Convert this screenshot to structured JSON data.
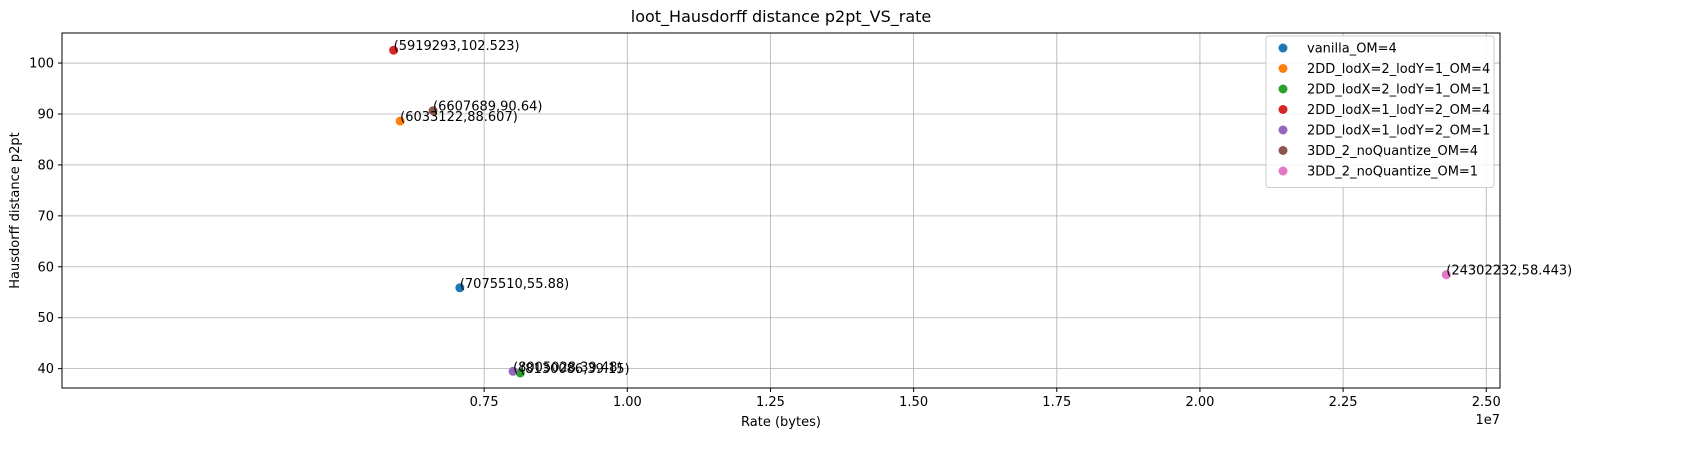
{
  "chart_data": {
    "type": "scatter",
    "title": "loot_Hausdorff distance p2pt_VS_rate",
    "xlabel": "Rate (bytes)",
    "ylabel": "Hausdorff distance p2pt",
    "x_offset_label": "1e7",
    "x_scale_factor": 10000000,
    "xlim": [
      128000,
      25240000
    ],
    "ylim": [
      36.2,
      105.9
    ],
    "xticks": [
      0.75,
      1.0,
      1.25,
      1.5,
      1.75,
      2.0,
      2.25,
      2.5
    ],
    "xtick_labels": [
      "0.75",
      "1.00",
      "1.25",
      "1.50",
      "1.75",
      "2.00",
      "2.25",
      "2.50"
    ],
    "yticks": [
      40,
      50,
      60,
      70,
      80,
      90,
      100
    ],
    "ytick_labels": [
      "40",
      "50",
      "60",
      "70",
      "80",
      "90",
      "100"
    ],
    "grid": true,
    "legend_position": "top-right",
    "series": [
      {
        "name": "vanilla_OM=4",
        "color": "#1f77b4",
        "points": [
          {
            "x": 7075510,
            "y": 55.88,
            "label": "(7075510,55.88)"
          }
        ]
      },
      {
        "name": "2DD_lodX=2_lodY=1_OM=4",
        "color": "#ff7f0e",
        "points": [
          {
            "x": 6033122,
            "y": 88.607,
            "label": "(6033122,88.607)"
          }
        ]
      },
      {
        "name": "2DD_lodX=2_lodY=1_OM=1",
        "color": "#2ca02c",
        "points": [
          {
            "x": 8130086,
            "y": 39.15,
            "label": "(8130086,39.15)"
          }
        ]
      },
      {
        "name": "2DD_lodX=1_lodY=2_OM=4",
        "color": "#d62728",
        "points": [
          {
            "x": 5919293,
            "y": 102.523,
            "label": "(5919293,102.523)"
          }
        ]
      },
      {
        "name": "2DD_lodX=1_lodY=2_OM=1",
        "color": "#9467bd",
        "points": [
          {
            "x": 8005028,
            "y": 39.48,
            "label": "(8005028,39.48)"
          }
        ]
      },
      {
        "name": "3DD_2_noQuantize_OM=4",
        "color": "#8c564b",
        "points": [
          {
            "x": 6607689,
            "y": 90.64,
            "label": "(6607689,90.64)"
          }
        ]
      },
      {
        "name": "3DD_2_noQuantize_OM=1",
        "color": "#e377c2",
        "points": [
          {
            "x": 24302232,
            "y": 58.443,
            "label": "(24302232,58.443)"
          }
        ]
      }
    ]
  }
}
